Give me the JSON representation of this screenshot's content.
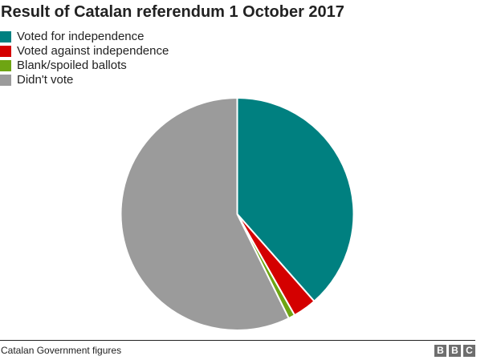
{
  "chart_data": {
    "type": "pie",
    "title": "Result of Catalan referendum 1 October 2017",
    "start_angle_deg": 0,
    "direction": "clockwise",
    "slices": [
      {
        "label": "Voted for independence",
        "value": 38.5,
        "color": "#008080"
      },
      {
        "label": "Voted against independence",
        "value": 3.3,
        "color": "#d40000"
      },
      {
        "label": "Blank/spoiled ballots",
        "value": 0.9,
        "color": "#6ea513"
      },
      {
        "label": "Didn't vote",
        "value": 57.3,
        "color": "#9b9b9b"
      }
    ],
    "legend_position": "top-left",
    "source": "Catalan Government figures"
  },
  "header": {
    "title": "Result of Catalan referendum 1 October 2017"
  },
  "legend": [
    {
      "label": "Voted for independence",
      "color": "#008080"
    },
    {
      "label": "Voted against independence",
      "color": "#d40000"
    },
    {
      "label": "Blank/spoiled ballots",
      "color": "#6ea513"
    },
    {
      "label": "Didn't vote",
      "color": "#9b9b9b"
    }
  ],
  "footer": {
    "source": "Catalan Government figures",
    "logo": [
      "B",
      "B",
      "C"
    ]
  }
}
